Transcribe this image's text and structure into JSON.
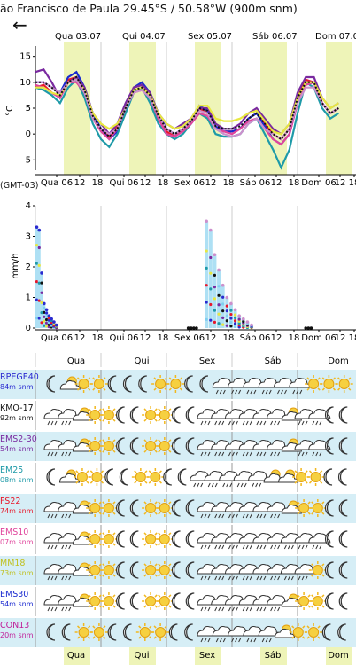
{
  "header": {
    "title": "ão Francisco de Paula  29.45°S / 50.58°W (900m snm)",
    "back_icon": "arrow-left-icon"
  },
  "temp_chart": {
    "ylabel": "°C",
    "yticks": [
      "15",
      "10",
      "5",
      "0",
      "-5"
    ],
    "day_labels": [
      "Qua 03.07",
      "Qui 04.07",
      "Sex 05.07",
      "Sáb 06.07",
      "Dom 07.0"
    ],
    "hour_labels": [
      "Qua 06",
      "12",
      "18",
      "Qui 06",
      "12",
      "18",
      "Sex 06",
      "12",
      "18",
      "Sáb 06",
      "12",
      "18",
      "Dom 06",
      "12",
      "18"
    ],
    "timezone": "(GMT-03)"
  },
  "precip_chart": {
    "ylabel": "mm/h",
    "yticks": [
      "4",
      "3",
      "2",
      "1",
      "0"
    ],
    "hour_labels": [
      "Qua 06",
      "12",
      "18",
      "Qui 06",
      "12",
      "18",
      "Sex 06",
      "12",
      "18",
      "Sáb 06",
      "12",
      "18",
      "Dom 06",
      "12",
      "18"
    ],
    "day_labels": [
      "Qua",
      "Qui",
      "Sex",
      "Sáb",
      "Dom"
    ]
  },
  "chart_data": [
    {
      "type": "line",
      "title": "",
      "ylabel": "°C",
      "ylim": [
        -7,
        17
      ],
      "x": [
        0,
        3,
        6,
        9,
        12,
        15,
        18,
        21,
        24,
        27,
        30,
        33,
        36,
        39,
        42,
        45,
        48,
        51,
        54,
        57,
        60,
        63,
        66,
        69,
        72,
        75,
        78,
        81,
        84,
        87,
        90,
        93,
        96,
        99,
        102,
        105,
        108,
        111
      ],
      "series": [
        {
          "color": "#e8182a",
          "values": [
            9,
            9.5,
            8,
            7,
            10.5,
            11,
            8,
            3,
            1,
            -0.5,
            1.5,
            5,
            9,
            9.5,
            7,
            3,
            0.5,
            -0.5,
            1,
            3,
            5,
            4,
            1,
            0.5,
            0.5,
            1,
            3,
            4,
            2,
            0,
            -1,
            1,
            7,
            10.5,
            10,
            6,
            4,
            5
          ]
        },
        {
          "color": "#1a2ad0",
          "values": [
            10,
            10,
            9,
            8,
            11,
            12,
            9,
            4,
            1,
            -1,
            0.5,
            5,
            9,
            10,
            8,
            4,
            1,
            0,
            1,
            3,
            5.5,
            4.5,
            1.5,
            0.5,
            0.5,
            1,
            3,
            4,
            1.5,
            -1,
            -2,
            0,
            6,
            10,
            10,
            6,
            4,
            5
          ]
        },
        {
          "color": "#1e9aa8",
          "values": [
            9,
            8.5,
            7.5,
            6,
            9,
            10.5,
            7,
            2,
            -1,
            -2.5,
            0,
            4,
            8,
            9,
            6,
            2,
            0,
            -1,
            0,
            2,
            4,
            3,
            0,
            -0.5,
            -0.5,
            0,
            2,
            3,
            0,
            -3,
            -6.5,
            -3,
            4,
            10,
            9,
            5,
            3,
            4
          ]
        },
        {
          "color": "#7a2aa0",
          "values": [
            12,
            12.5,
            10,
            7,
            10,
            11,
            9,
            4,
            2,
            0,
            2,
            6,
            9,
            9.5,
            8,
            4,
            2,
            1,
            2,
            3,
            5,
            5,
            2,
            1,
            1,
            2,
            4,
            5,
            3,
            1,
            0,
            2,
            8,
            11,
            11,
            7,
            5,
            6
          ]
        },
        {
          "color": "#e0459c",
          "values": [
            9.5,
            9,
            8,
            7,
            10,
            10,
            8,
            3,
            0.5,
            -1,
            1,
            5,
            8,
            8.5,
            7,
            3,
            0,
            -0.5,
            0.5,
            2,
            4,
            3.5,
            1,
            0.5,
            0,
            1,
            2.5,
            3,
            1,
            -1,
            -2,
            0,
            6,
            9.5,
            10,
            6,
            4,
            5
          ]
        },
        {
          "color": "#e8e840",
          "values": [
            9,
            9,
            8,
            7.5,
            10,
            10.5,
            8.5,
            4,
            2,
            1,
            2,
            5,
            8.5,
            9,
            7.5,
            4,
            2,
            1,
            1.5,
            3,
            5.5,
            5.5,
            3,
            2.5,
            2.5,
            3,
            4,
            4.5,
            2.5,
            0.5,
            0,
            2,
            7,
            10,
            10,
            7,
            5,
            6
          ]
        },
        {
          "color": "#cc90cc",
          "values": [
            10,
            10,
            9,
            8,
            10,
            10.5,
            8,
            3,
            1,
            0,
            1,
            5,
            8,
            8.5,
            7,
            3.5,
            1,
            0,
            1,
            2.5,
            4.5,
            4,
            1,
            0,
            -0.5,
            0,
            2,
            3,
            1,
            0,
            -1,
            1,
            6,
            9,
            9,
            6,
            4,
            5
          ]
        },
        {
          "color": "#111111",
          "values": [
            10,
            10,
            9,
            7.5,
            10,
            11,
            8.5,
            3.5,
            1,
            -0.5,
            1,
            5,
            8.5,
            9,
            7.5,
            3.5,
            1,
            0,
            1,
            2.5,
            5,
            4.5,
            1.5,
            1,
            1,
            1.5,
            3,
            4,
            2,
            0,
            -1,
            1,
            7,
            10,
            10,
            6,
            4,
            5
          ]
        }
      ]
    },
    {
      "type": "bar",
      "title": "",
      "ylabel": "mm/h",
      "ylim": [
        0,
        4
      ],
      "x_hours": [
        0,
        1,
        2,
        3,
        4,
        5,
        6,
        7,
        8,
        9,
        10,
        11,
        12,
        13,
        14,
        15,
        16,
        17,
        18,
        19,
        20,
        21,
        22,
        23,
        24,
        25,
        26,
        27,
        28
      ],
      "values_max": [
        3.3,
        3.2,
        1.8,
        0.8,
        0.6,
        0.4,
        0.3,
        0.2,
        0.1,
        0,
        0,
        0,
        0,
        0,
        0,
        0,
        0,
        0,
        0,
        0,
        0,
        0,
        0,
        0,
        0,
        0,
        0,
        0,
        0
      ],
      "sex_sab": {
        "start_hour": 62,
        "values_max": [
          3.5,
          3.2,
          2.4,
          1.9,
          1.4,
          1.0,
          0.8,
          0.6,
          0.4,
          0.3,
          0.2,
          0.1
        ]
      },
      "dots_zero_hours": [
        56,
        57,
        58,
        59,
        99,
        100,
        101
      ]
    }
  ],
  "models": [
    {
      "name": "RPEGE40",
      "sub": "84m snm",
      "color": "#2a2ad0"
    },
    {
      "name": "KMO-17",
      "sub": "92m snm",
      "color": "#111111"
    },
    {
      "name": "EMS2-30",
      "sub": "54m snm",
      "color": "#7a2aa0"
    },
    {
      "name": "EM25",
      "sub": "08m snm",
      "color": "#1e9aa8"
    },
    {
      "name": "FS22",
      "sub": "74m snm",
      "color": "#e8182a"
    },
    {
      "name": "EMS10",
      "sub": "07m snm",
      "color": "#e0459c"
    },
    {
      "name": "MM18",
      "sub": "73m snm",
      "color": "#c0c020"
    },
    {
      "name": "EMS30",
      "sub": "54m snm",
      "color": "#1a2ad0"
    },
    {
      "name": "CON13",
      "sub": "20m snm",
      "color": "#c0209a"
    }
  ],
  "icon_legend": {
    "sun": "sun-icon",
    "moon": "moon-icon",
    "cloud": "cloud-icon",
    "rain": "rain-cloud-icon",
    "snow": "snow-cloud-icon",
    "partly": "sun-cloud-icon",
    "night_partly": "moon-cloud-icon"
  },
  "icon_rows": [
    "MPSSMNNSSMNRRRRRRSSS",
    "RRPSSMNSSMNRRRRRRPRRMN",
    "RRPSSMNSSMNRRRRRRPRRMN",
    "NPSSMNSSMNRRRRRPPSSMN",
    "RRPSSMNSSMNRRRRRRPSSMN",
    "RRPSSMNSSMNRRRRRRRRRMN",
    "RRPSSMNSSMNRRRRRRRRSMN",
    "RRPSSMNSSMNRRRRRRPSSMN",
    "MNSSMNSSMNRRRRRPSSMN"
  ]
}
